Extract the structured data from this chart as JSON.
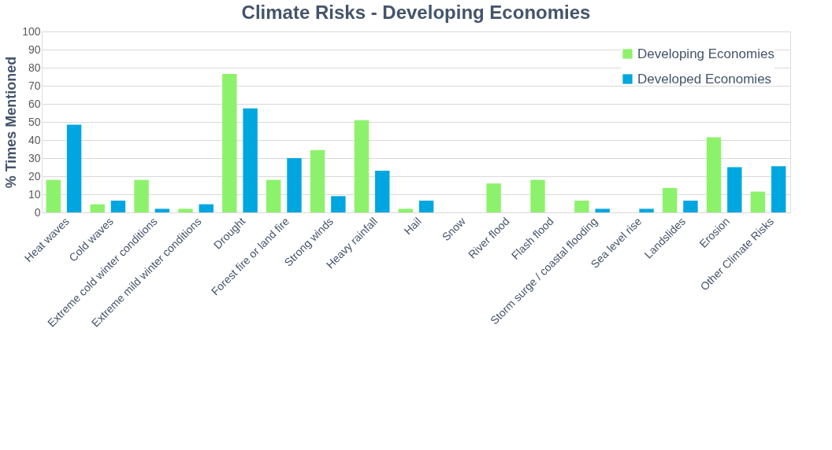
{
  "chart_data": {
    "type": "bar",
    "title": "Climate Risks - Developing Economies",
    "ylabel": "% Times Mentioned",
    "categories": [
      "Heat waves",
      "Cold waves",
      "Extreme cold winter conditions",
      "Extreme mild winter conditions",
      "Drought",
      "Forest fire or land fire",
      "Strong winds",
      "Heavy rainfall",
      "Hail",
      "Snow",
      "River flood",
      "Flash flood",
      "Storm surge / coastal flooding",
      "Sea level rise",
      "Landslides",
      "Erosion",
      "Other Climate Risks"
    ],
    "series": [
      {
        "name": "Developing Economies",
        "color": "#8df26b",
        "values": [
          18,
          4.5,
          18,
          2,
          76.5,
          18,
          34.5,
          51,
          2,
          0,
          16,
          18,
          6.5,
          0,
          13.5,
          41.5,
          11.5
        ]
      },
      {
        "name": "Developed Economies",
        "color": "#00a6e0",
        "values": [
          48.5,
          6.5,
          2,
          4.5,
          57.5,
          30,
          9,
          23,
          6.5,
          0,
          0,
          0,
          2,
          2,
          6.5,
          25,
          25.5
        ]
      }
    ],
    "ylim": [
      0,
      100
    ],
    "yticks": [
      0,
      10,
      20,
      30,
      40,
      50,
      60,
      70,
      80,
      90,
      100
    ],
    "grid": "y",
    "legend": "top right"
  }
}
